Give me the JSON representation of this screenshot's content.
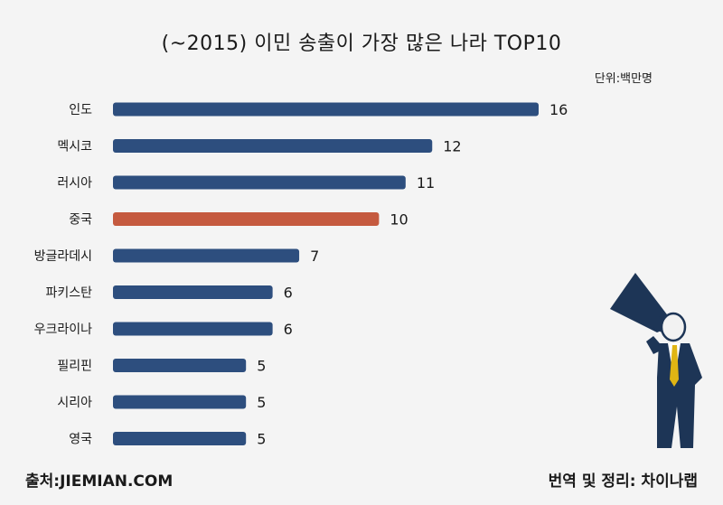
{
  "chart_data": {
    "type": "bar",
    "orientation": "horizontal",
    "title": "(~2015) 이민 송출이 가장 많은 나라 TOP10",
    "unit_label": "단위:백만명",
    "categories": [
      "인도",
      "멕시코",
      "러시아",
      "중국",
      "방글라데시",
      "파키스탄",
      "우크라이나",
      "필리핀",
      "시리아",
      "영국"
    ],
    "values": [
      16,
      12,
      11,
      10,
      7,
      6,
      6,
      5,
      5,
      5
    ],
    "highlight_index": 3,
    "xlim": [
      0,
      16
    ],
    "grid": false,
    "colors": {
      "bar": "#2d4e7e",
      "highlight": "#c55a3f"
    }
  },
  "footer": {
    "source": "출처:JIEMIAN.COM",
    "credit": "번역 및 정리: 차이나랩"
  },
  "illustration": "man-with-megaphone"
}
